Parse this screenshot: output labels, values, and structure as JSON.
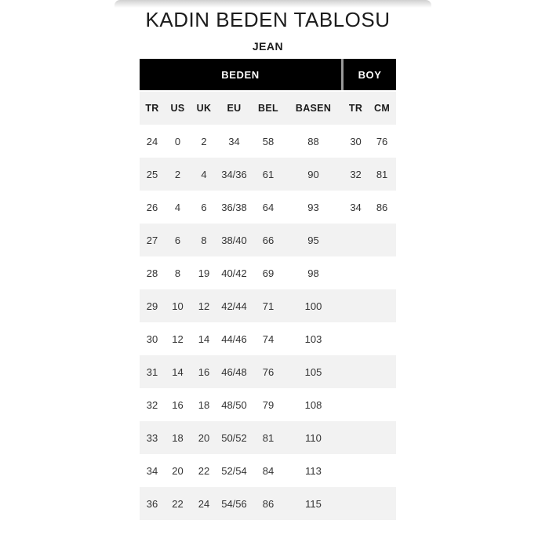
{
  "header": {
    "title": "KADIN BEDEN TABLOSU",
    "subtitle": "JEAN"
  },
  "table": {
    "groups": [
      {
        "label": "BEDEN"
      },
      {
        "label": "BOY"
      }
    ],
    "columns": [
      "TR",
      "US",
      "UK",
      "EU",
      "BEL",
      "BASEN",
      "TR",
      "CM"
    ],
    "rows": [
      [
        "24",
        "0",
        "2",
        "34",
        "58",
        "88",
        "30",
        "76"
      ],
      [
        "25",
        "2",
        "4",
        "34/36",
        "61",
        "90",
        "32",
        "81"
      ],
      [
        "26",
        "4",
        "6",
        "36/38",
        "64",
        "93",
        "34",
        "86"
      ],
      [
        "27",
        "6",
        "8",
        "38/40",
        "66",
        "95",
        "",
        ""
      ],
      [
        "28",
        "8",
        "19",
        "40/42",
        "69",
        "98",
        "",
        ""
      ],
      [
        "29",
        "10",
        "12",
        "42/44",
        "71",
        "100",
        "",
        ""
      ],
      [
        "30",
        "12",
        "14",
        "44/46",
        "74",
        "103",
        "",
        ""
      ],
      [
        "31",
        "14",
        "16",
        "46/48",
        "76",
        "105",
        "",
        ""
      ],
      [
        "32",
        "16",
        "18",
        "48/50",
        "79",
        "108",
        "",
        ""
      ],
      [
        "33",
        "18",
        "20",
        "50/52",
        "81",
        "110",
        "",
        ""
      ],
      [
        "34",
        "20",
        "22",
        "52/54",
        "84",
        "113",
        "",
        ""
      ],
      [
        "36",
        "22",
        "24",
        "54/56",
        "86",
        "115",
        "",
        ""
      ]
    ],
    "colors": {
      "group_bg": "#000000",
      "group_text": "#ffffff",
      "alt_row_bg": "#f2f2f2",
      "header_text": "#1a1a1a",
      "cell_text": "#333333",
      "divider": "#999999",
      "top_shadow": "#d0d0d0"
    }
  }
}
